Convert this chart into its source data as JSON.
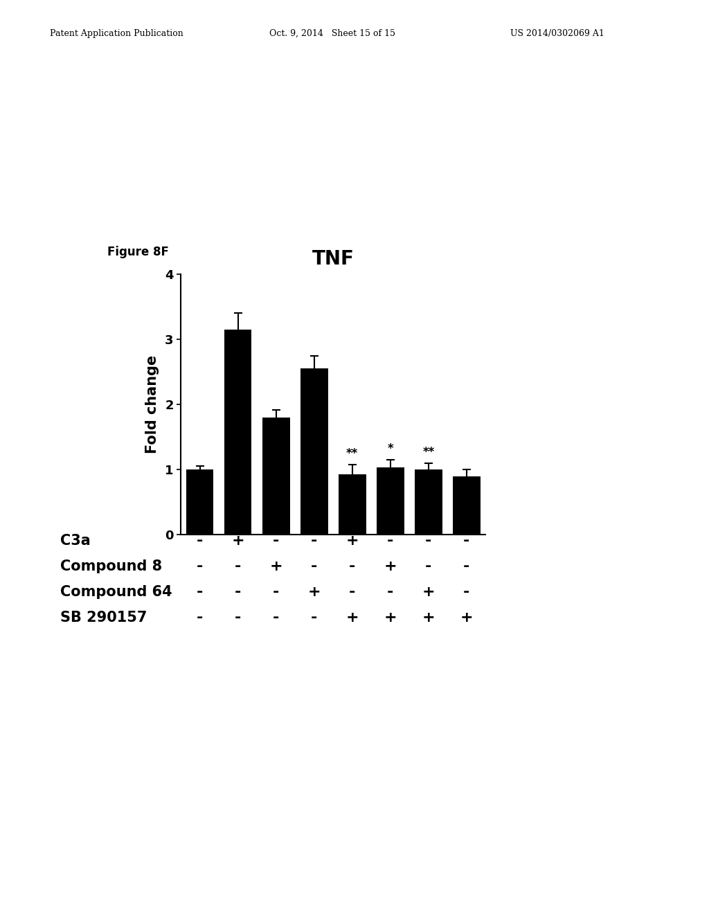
{
  "title": "TNF",
  "ylabel": "Fold change",
  "bar_values": [
    1.0,
    3.15,
    1.8,
    2.55,
    0.93,
    1.03,
    1.0,
    0.9
  ],
  "bar_errors": [
    0.05,
    0.25,
    0.12,
    0.2,
    0.15,
    0.12,
    0.1,
    0.1
  ],
  "bar_color": "#000000",
  "ylim": [
    0,
    4
  ],
  "yticks": [
    0,
    1,
    2,
    3,
    4
  ],
  "significance": [
    "",
    "",
    "",
    "",
    "**",
    "*",
    "**",
    ""
  ],
  "figure_label": "Figure 8F",
  "table_labels": [
    "C3a",
    "Compound 8",
    "Compound 64",
    "SB 290157"
  ],
  "table_data": [
    [
      "-",
      "+",
      "-",
      "-",
      "+",
      "-",
      "-",
      "-"
    ],
    [
      "-",
      "-",
      "+",
      "-",
      "-",
      "+",
      "-",
      "-"
    ],
    [
      "-",
      "-",
      "-",
      "+",
      "-",
      "-",
      "+",
      "-"
    ],
    [
      "-",
      "-",
      "-",
      "-",
      "+",
      "+",
      "+",
      "+"
    ]
  ],
  "background_color": "#ffffff",
  "title_fontsize": 20,
  "label_fontsize": 15,
  "tick_fontsize": 13,
  "table_label_fontsize": 15,
  "table_val_fontsize": 15,
  "sig_fontsize": 12,
  "header_left": "Patent Application Publication",
  "header_mid": "Oct. 9, 2014   Sheet 15 of 15",
  "header_right": "US 2014/0302069 A1"
}
